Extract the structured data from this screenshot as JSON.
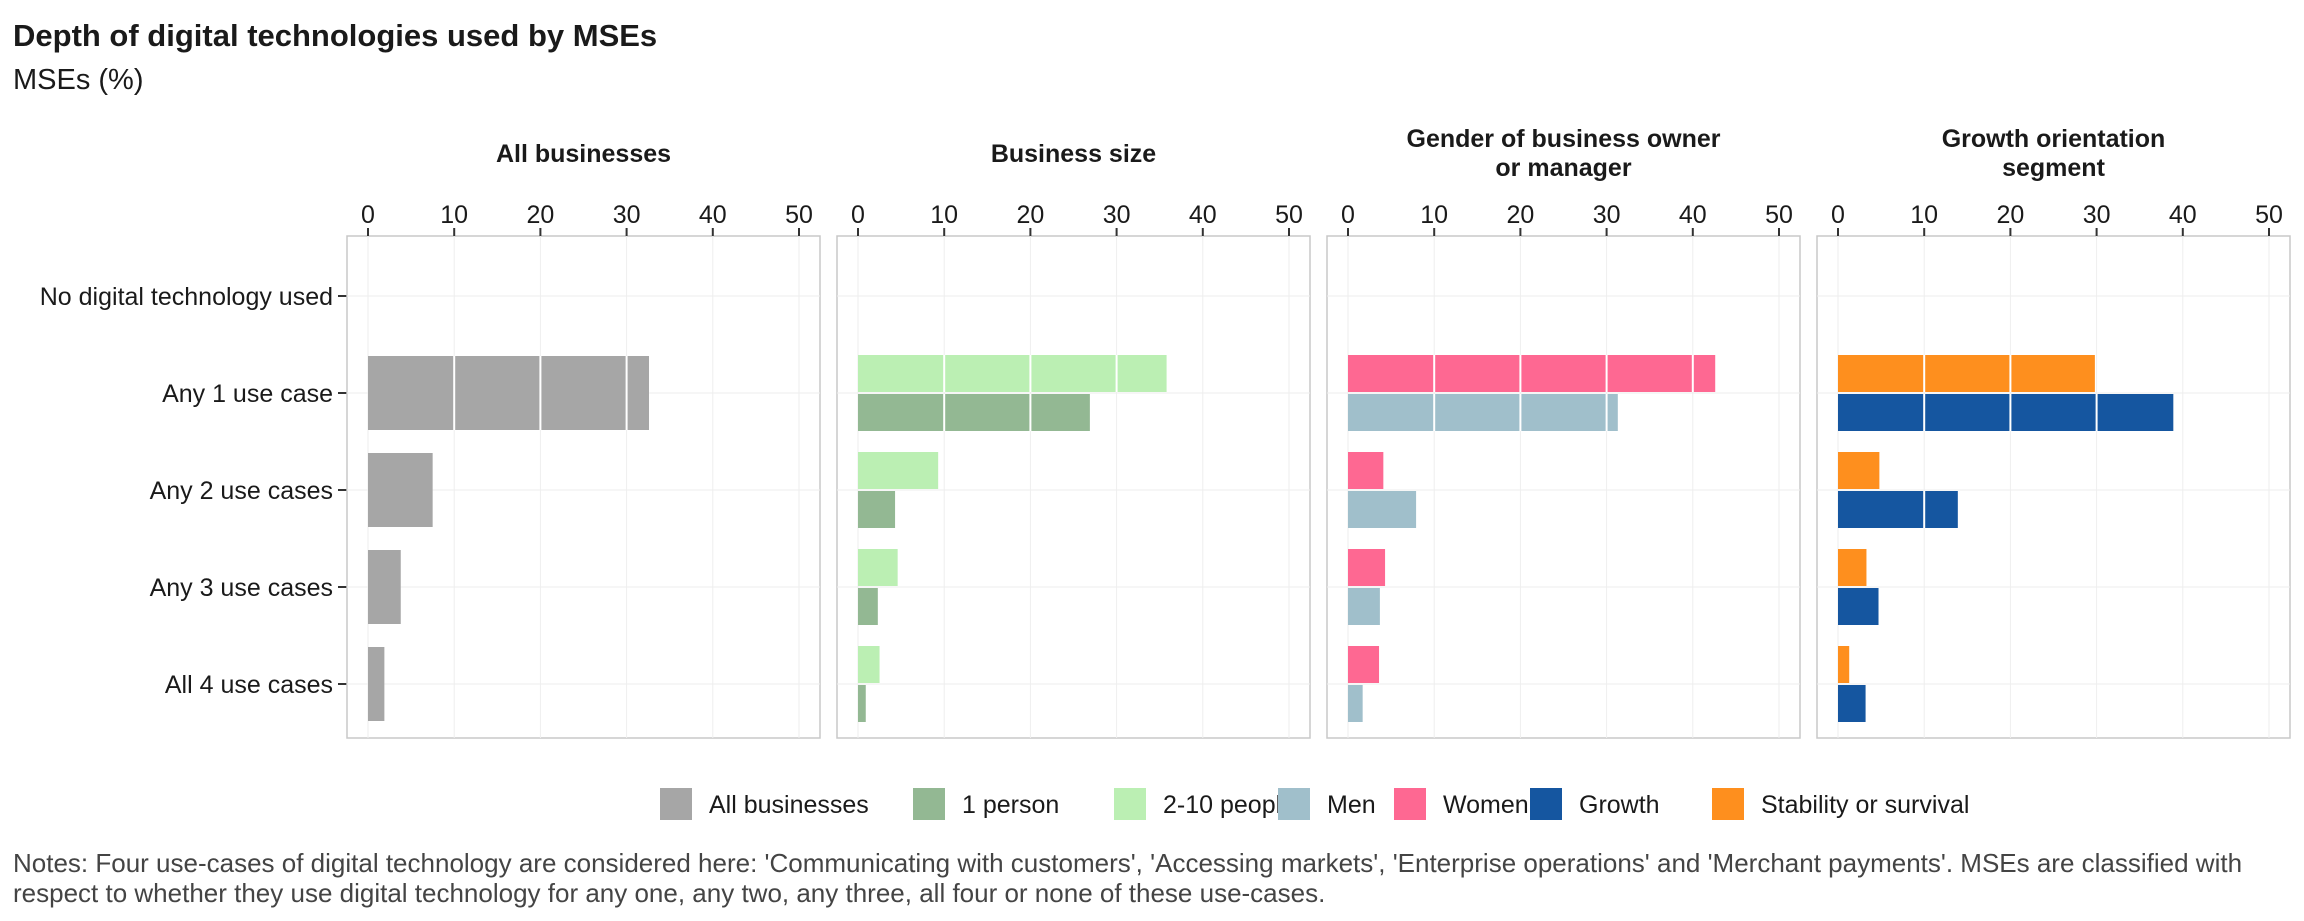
{
  "title": "Depth of digital technologies used by MSEs",
  "subtitle": "MSEs (%)",
  "notes": "Notes: Four use-cases of digital technology are considered here: 'Communicating with customers', 'Accessing markets', 'Enterprise operations' and 'Merchant payments'. MSEs are classified with respect to whether they use digital technology for any one, any two, any three, all four or none of these use-cases.",
  "chart_data": {
    "type": "bar",
    "orientation": "horizontal",
    "categories": [
      "No digital technology used",
      "Any 1 use case",
      "Any 2 use cases",
      "Any 3 use cases",
      "All 4 use cases"
    ],
    "xlim": [
      0,
      52
    ],
    "xticks": [
      0,
      10,
      20,
      30,
      40,
      50
    ],
    "grid": true,
    "legend_position": "bottom",
    "panels": [
      {
        "title_lines": [
          "All businesses"
        ],
        "series": [
          {
            "name": "All businesses",
            "color": "#a6a6a6",
            "values": [
              0,
              32.6,
              7.5,
              3.8,
              1.9
            ]
          }
        ]
      },
      {
        "title_lines": [
          "Business size"
        ],
        "series": [
          {
            "name": "2-10 people",
            "color": "#bbefb3",
            "values": [
              0,
              35.8,
              9.3,
              4.6,
              2.5
            ]
          },
          {
            "name": "1 person",
            "color": "#93b893",
            "values": [
              0,
              26.9,
              4.3,
              2.3,
              0.9
            ]
          }
        ]
      },
      {
        "title_lines": [
          "Gender of business owner",
          "or manager"
        ],
        "series": [
          {
            "name": "Women",
            "color": "#fe6892",
            "values": [
              0,
              42.6,
              4.1,
              4.3,
              3.6
            ]
          },
          {
            "name": "Men",
            "color": "#a0bfcb",
            "values": [
              0,
              31.3,
              7.9,
              3.7,
              1.7
            ]
          }
        ]
      },
      {
        "title_lines": [
          "Growth orientation",
          "segment"
        ],
        "series": [
          {
            "name": "Stability or survival",
            "color": "#fe8f1e",
            "values": [
              0,
              29.8,
              4.8,
              3.3,
              1.3
            ]
          },
          {
            "name": "Growth",
            "color": "#1556a0",
            "values": [
              0,
              38.9,
              13.9,
              4.7,
              3.2
            ]
          }
        ]
      }
    ],
    "legend": [
      {
        "label": "All businesses",
        "color": "#a6a6a6"
      },
      {
        "label": "1 person",
        "color": "#93b893"
      },
      {
        "label": "2-10 people",
        "color": "#bbefb3"
      },
      {
        "label": "Men",
        "color": "#a0bfcb"
      },
      {
        "label": "Women",
        "color": "#fe6892"
      },
      {
        "label": "Growth",
        "color": "#1556a0"
      },
      {
        "label": "Stability or survival",
        "color": "#fe8f1e"
      }
    ]
  }
}
